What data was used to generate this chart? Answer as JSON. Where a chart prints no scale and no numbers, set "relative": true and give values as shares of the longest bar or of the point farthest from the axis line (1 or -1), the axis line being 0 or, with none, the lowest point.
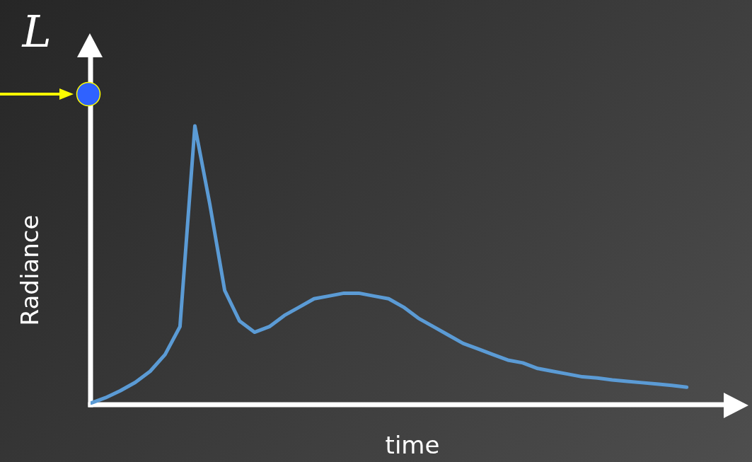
{
  "chart_data": {
    "type": "line",
    "xlabel": "time",
    "ylabel": "Radiance",
    "relative": true,
    "legend": false,
    "tick_labels": false,
    "annotations": [
      "L"
    ],
    "categories": [
      null,
      null,
      null,
      null,
      null,
      null,
      null,
      null,
      null,
      null,
      null,
      null,
      null,
      null,
      null,
      null,
      null,
      null,
      null,
      null,
      null,
      null,
      null,
      null,
      null,
      null,
      null,
      null,
      null,
      null,
      null,
      null,
      null,
      null,
      null,
      null,
      null,
      null,
      null,
      null,
      null
    ],
    "series": [
      {
        "color": "#5b9bd5",
        "values": [
          0.005,
          0.025,
          0.05,
          0.08,
          0.12,
          0.18,
          0.28,
          1,
          0.72,
          0.41,
          0.3,
          0.26,
          0.28,
          0.32,
          0.35,
          0.38,
          0.39,
          0.4,
          0.4,
          0.39,
          0.38,
          0.35,
          0.31,
          0.28,
          0.25,
          0.22,
          0.2,
          0.18,
          0.16,
          0.15,
          0.13,
          0.12,
          0.11,
          0.1,
          0.096,
          0.089,
          0.084,
          0.079,
          0.074,
          0.069,
          0.063
        ]
      }
    ]
  }
}
